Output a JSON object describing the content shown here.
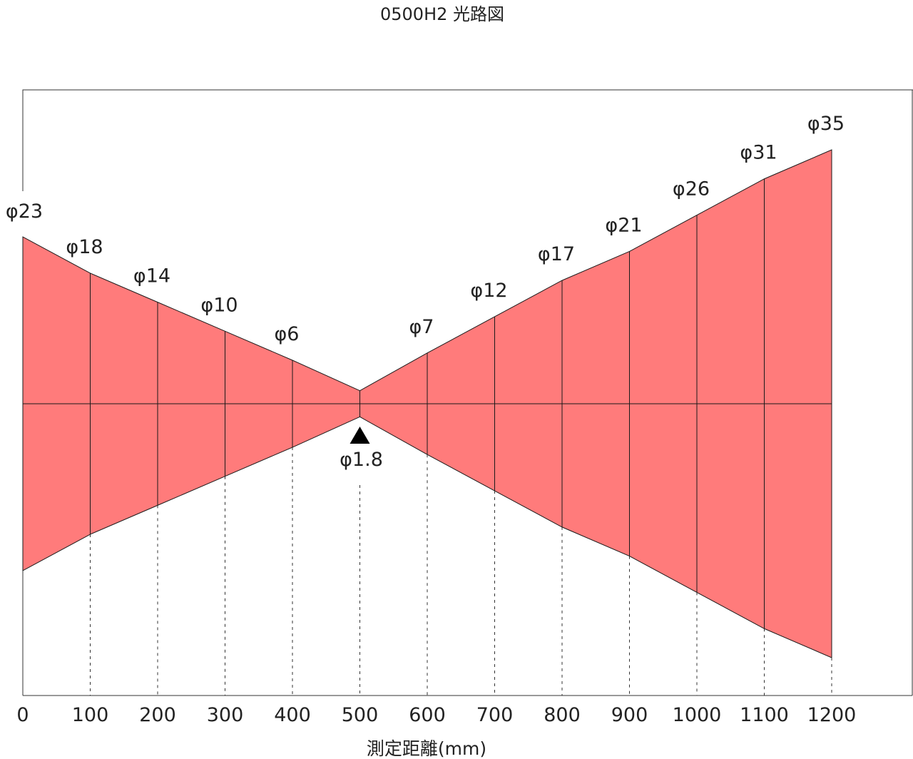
{
  "chart_data": {
    "type": "area",
    "title": "0500H2 光路図",
    "xlabel": "測定距離(mm)",
    "ylabel": "",
    "x_ticks": [
      "0",
      "100",
      "200",
      "300",
      "400",
      "500",
      "600",
      "700",
      "800",
      "900",
      "1000",
      "1100",
      "1200"
    ],
    "xlim": [
      0,
      1200
    ],
    "focus_distance": 500,
    "points": [
      {
        "x": 0,
        "label": "φ23",
        "diameter": 23
      },
      {
        "x": 100,
        "label": "φ18",
        "diameter": 18
      },
      {
        "x": 200,
        "label": "φ14",
        "diameter": 14
      },
      {
        "x": 300,
        "label": "φ10",
        "diameter": 10
      },
      {
        "x": 400,
        "label": "φ6",
        "diameter": 6
      },
      {
        "x": 500,
        "label": "φ1.8",
        "diameter": 1.8
      },
      {
        "x": 600,
        "label": "φ7",
        "diameter": 7
      },
      {
        "x": 700,
        "label": "φ12",
        "diameter": 12
      },
      {
        "x": 800,
        "label": "φ17",
        "diameter": 17
      },
      {
        "x": 900,
        "label": "φ21",
        "diameter": 21
      },
      {
        "x": 1000,
        "label": "φ26",
        "diameter": 26
      },
      {
        "x": 1100,
        "label": "φ31",
        "diameter": 31
      },
      {
        "x": 1200,
        "label": "φ35",
        "diameter": 35
      }
    ],
    "colors": {
      "beam": "#ff7b7b",
      "line": "#1a1a1a"
    }
  }
}
